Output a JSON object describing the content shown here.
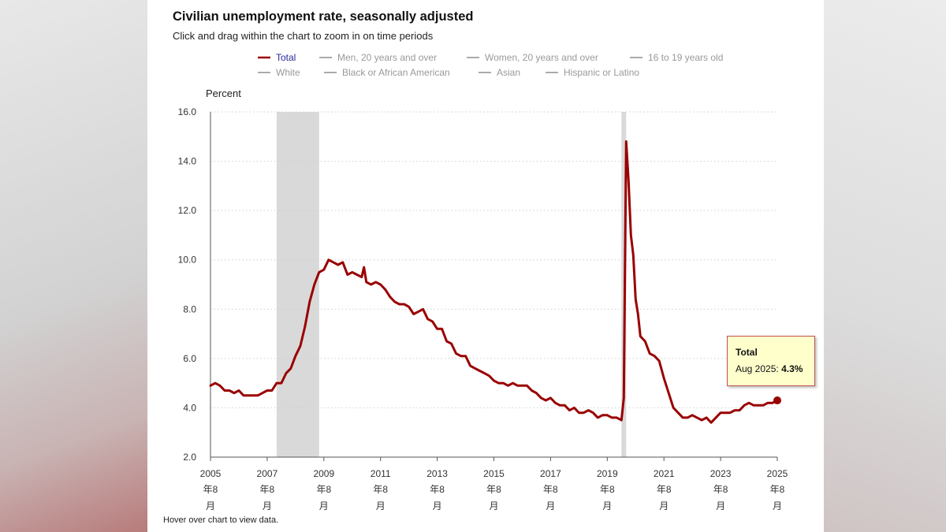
{
  "title": "Civilian unemployment rate, seasonally adjusted",
  "subtitle": "Click and drag within the chart to zoom in on time periods",
  "footer": "Hover over chart to view data.",
  "tooltip": {
    "title": "Total",
    "label": "Aug 2025: ",
    "value": "4.3%"
  },
  "colors": {
    "total": "#990000",
    "inactive_legend": "#999999",
    "recession_shade": "#d9d9d9",
    "tooltip_bg": "#ffffcc"
  },
  "chart_data": {
    "type": "line",
    "ylabel": "Percent",
    "ylim": [
      2.0,
      16.0
    ],
    "y_ticks": [
      "2.0",
      "4.0",
      "6.0",
      "8.0",
      "10.0",
      "12.0",
      "14.0",
      "16.0"
    ],
    "x_ticks": [
      {
        "year": "2005",
        "suffix": "年8",
        "month": "月",
        "date": 2005.583
      },
      {
        "year": "2007",
        "suffix": "年8",
        "month": "月",
        "date": 2007.583
      },
      {
        "year": "2009",
        "suffix": "年8",
        "month": "月",
        "date": 2009.583
      },
      {
        "year": "2011",
        "suffix": "年8",
        "month": "月",
        "date": 2011.583
      },
      {
        "year": "2013",
        "suffix": "年8",
        "month": "月",
        "date": 2013.583
      },
      {
        "year": "2015",
        "suffix": "年8",
        "month": "月",
        "date": 2015.583
      },
      {
        "year": "2017",
        "suffix": "年8",
        "month": "月",
        "date": 2017.583
      },
      {
        "year": "2019",
        "suffix": "年8",
        "month": "月",
        "date": 2019.583
      },
      {
        "year": "2021",
        "suffix": "年8",
        "month": "月",
        "date": 2021.583
      },
      {
        "year": "2023",
        "suffix": "年8",
        "month": "月",
        "date": 2023.583
      },
      {
        "year": "2025",
        "suffix": "年8",
        "month": "月",
        "date": 2025.583
      }
    ],
    "xlim": [
      2005.583,
      2025.583
    ],
    "grid": "horizontal dotted",
    "legend_placement": "top",
    "legend": [
      {
        "name": "Total",
        "active": true
      },
      {
        "name": "Men, 20 years and over",
        "active": false
      },
      {
        "name": "Women, 20 years and over",
        "active": false
      },
      {
        "name": "16 to 19 years old",
        "active": false
      },
      {
        "name": "White",
        "active": false
      },
      {
        "name": "Black or African American",
        "active": false
      },
      {
        "name": "Asian",
        "active": false
      },
      {
        "name": "Hispanic or Latino",
        "active": false
      }
    ],
    "recessions": [
      [
        2007.917,
        2009.417
      ],
      [
        2020.083,
        2020.25
      ]
    ],
    "series": [
      {
        "name": "Total",
        "points": [
          [
            2005.583,
            4.9
          ],
          [
            2005.75,
            5.0
          ],
          [
            2005.917,
            4.9
          ],
          [
            2006.083,
            4.7
          ],
          [
            2006.25,
            4.7
          ],
          [
            2006.417,
            4.6
          ],
          [
            2006.583,
            4.7
          ],
          [
            2006.75,
            4.5
          ],
          [
            2006.917,
            4.5
          ],
          [
            2007.083,
            4.5
          ],
          [
            2007.25,
            4.5
          ],
          [
            2007.417,
            4.6
          ],
          [
            2007.583,
            4.7
          ],
          [
            2007.75,
            4.7
          ],
          [
            2007.917,
            5.0
          ],
          [
            2008.083,
            5.0
          ],
          [
            2008.25,
            5.4
          ],
          [
            2008.417,
            5.6
          ],
          [
            2008.583,
            6.1
          ],
          [
            2008.75,
            6.5
          ],
          [
            2008.917,
            7.3
          ],
          [
            2009.083,
            8.3
          ],
          [
            2009.25,
            9.0
          ],
          [
            2009.417,
            9.5
          ],
          [
            2009.583,
            9.6
          ],
          [
            2009.75,
            10.0
          ],
          [
            2009.917,
            9.9
          ],
          [
            2010.083,
            9.8
          ],
          [
            2010.25,
            9.9
          ],
          [
            2010.417,
            9.4
          ],
          [
            2010.583,
            9.5
          ],
          [
            2010.75,
            9.4
          ],
          [
            2010.917,
            9.3
          ],
          [
            2011.0,
            9.7
          ],
          [
            2011.083,
            9.1
          ],
          [
            2011.25,
            9.0
          ],
          [
            2011.417,
            9.1
          ],
          [
            2011.583,
            9.0
          ],
          [
            2011.75,
            8.8
          ],
          [
            2011.917,
            8.5
          ],
          [
            2012.083,
            8.3
          ],
          [
            2012.25,
            8.2
          ],
          [
            2012.417,
            8.2
          ],
          [
            2012.583,
            8.1
          ],
          [
            2012.75,
            7.8
          ],
          [
            2012.917,
            7.9
          ],
          [
            2013.083,
            8.0
          ],
          [
            2013.25,
            7.6
          ],
          [
            2013.417,
            7.5
          ],
          [
            2013.583,
            7.2
          ],
          [
            2013.75,
            7.2
          ],
          [
            2013.917,
            6.7
          ],
          [
            2014.083,
            6.6
          ],
          [
            2014.25,
            6.2
          ],
          [
            2014.417,
            6.1
          ],
          [
            2014.583,
            6.1
          ],
          [
            2014.75,
            5.7
          ],
          [
            2014.917,
            5.6
          ],
          [
            2015.083,
            5.5
          ],
          [
            2015.25,
            5.4
          ],
          [
            2015.417,
            5.3
          ],
          [
            2015.583,
            5.1
          ],
          [
            2015.75,
            5.0
          ],
          [
            2015.917,
            5.0
          ],
          [
            2016.083,
            4.9
          ],
          [
            2016.25,
            5.0
          ],
          [
            2016.417,
            4.9
          ],
          [
            2016.583,
            4.9
          ],
          [
            2016.75,
            4.9
          ],
          [
            2016.917,
            4.7
          ],
          [
            2017.083,
            4.6
          ],
          [
            2017.25,
            4.4
          ],
          [
            2017.417,
            4.3
          ],
          [
            2017.583,
            4.4
          ],
          [
            2017.75,
            4.2
          ],
          [
            2017.917,
            4.1
          ],
          [
            2018.083,
            4.1
          ],
          [
            2018.25,
            3.9
          ],
          [
            2018.417,
            4.0
          ],
          [
            2018.583,
            3.8
          ],
          [
            2018.75,
            3.8
          ],
          [
            2018.917,
            3.9
          ],
          [
            2019.083,
            3.8
          ],
          [
            2019.25,
            3.6
          ],
          [
            2019.417,
            3.7
          ],
          [
            2019.583,
            3.7
          ],
          [
            2019.75,
            3.6
          ],
          [
            2019.917,
            3.6
          ],
          [
            2020.083,
            3.5
          ],
          [
            2020.167,
            4.4
          ],
          [
            2020.25,
            14.8
          ],
          [
            2020.333,
            13.2
          ],
          [
            2020.417,
            11.0
          ],
          [
            2020.5,
            10.2
          ],
          [
            2020.583,
            8.4
          ],
          [
            2020.667,
            7.8
          ],
          [
            2020.75,
            6.9
          ],
          [
            2020.917,
            6.7
          ],
          [
            2021.083,
            6.2
          ],
          [
            2021.25,
            6.1
          ],
          [
            2021.417,
            5.9
          ],
          [
            2021.583,
            5.2
          ],
          [
            2021.75,
            4.6
          ],
          [
            2021.917,
            4.0
          ],
          [
            2022.083,
            3.8
          ],
          [
            2022.25,
            3.6
          ],
          [
            2022.417,
            3.6
          ],
          [
            2022.583,
            3.7
          ],
          [
            2022.75,
            3.6
          ],
          [
            2022.917,
            3.5
          ],
          [
            2023.083,
            3.6
          ],
          [
            2023.25,
            3.4
          ],
          [
            2023.417,
            3.6
          ],
          [
            2023.583,
            3.8
          ],
          [
            2023.75,
            3.8
          ],
          [
            2023.917,
            3.8
          ],
          [
            2024.083,
            3.9
          ],
          [
            2024.25,
            3.9
          ],
          [
            2024.417,
            4.1
          ],
          [
            2024.583,
            4.2
          ],
          [
            2024.75,
            4.1
          ],
          [
            2024.917,
            4.1
          ],
          [
            2025.083,
            4.1
          ],
          [
            2025.25,
            4.2
          ],
          [
            2025.417,
            4.2
          ],
          [
            2025.583,
            4.3
          ]
        ]
      }
    ]
  }
}
